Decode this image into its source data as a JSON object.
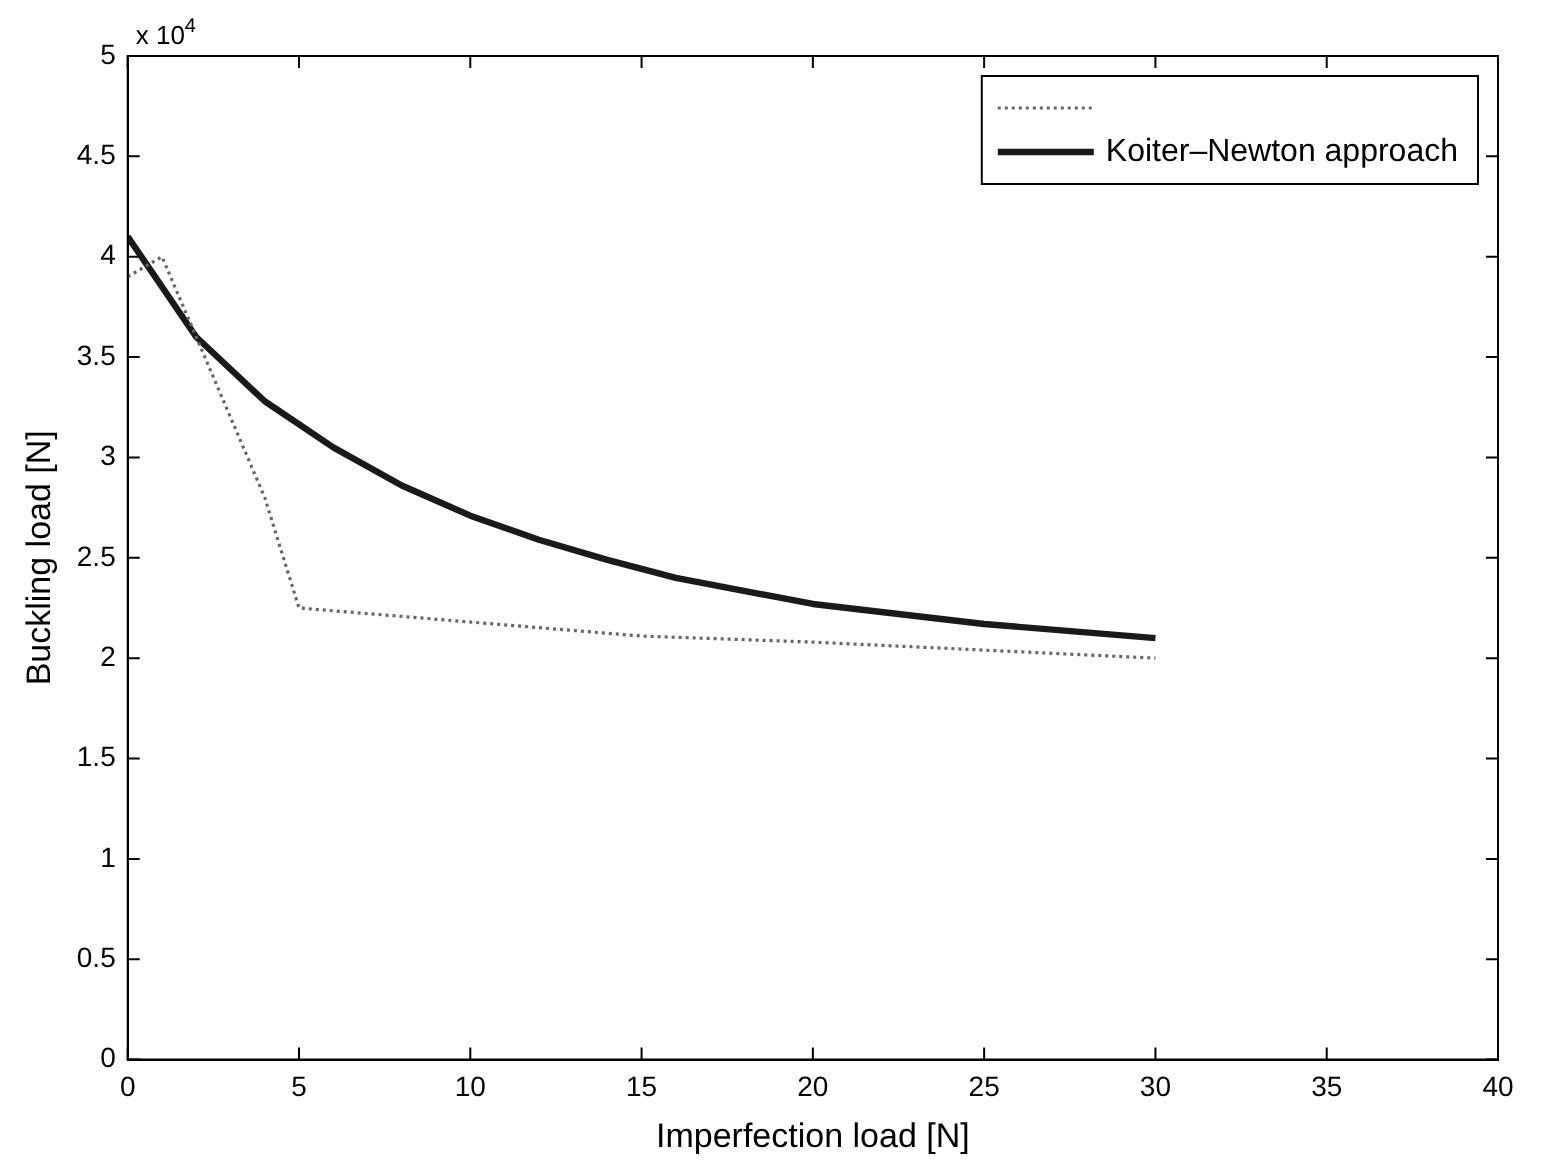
{
  "chart_data": {
    "type": "line",
    "xlabel": "Imperfection load [N]",
    "ylabel": "Buckling load [N]",
    "xlim": [
      0,
      40
    ],
    "xticks": [
      0,
      5,
      10,
      15,
      20,
      25,
      30,
      35,
      40
    ],
    "ylim": [
      0,
      5
    ],
    "yticks": [
      0,
      0.5,
      1,
      1.5,
      2,
      2.5,
      3,
      3.5,
      4,
      4.5,
      5
    ],
    "annotations": [
      "x 10$^{4}$"
    ],
    "grid": false,
    "legend": "top right",
    "marker": "none",
    "series": [
      {
        "color": "#666666",
        "line_style": "dotted",
        "x": [
          0,
          1,
          2,
          4,
          5,
          10,
          15,
          20,
          25,
          30
        ],
        "values": [
          3.9,
          4.0,
          3.6,
          2.8,
          2.25,
          2.18,
          2.11,
          2.08,
          2.04,
          2.0
        ]
      },
      {
        "name": "Koiter–Newton approach",
        "color": "#1a1a1a",
        "line_style": "solid",
        "x": [
          0,
          2,
          4,
          6,
          8,
          10,
          12,
          14,
          16,
          20,
          25,
          30
        ],
        "values": [
          4.1,
          3.6,
          3.28,
          3.05,
          2.86,
          2.71,
          2.59,
          2.49,
          2.4,
          2.27,
          2.17,
          2.1
        ]
      }
    ]
  }
}
